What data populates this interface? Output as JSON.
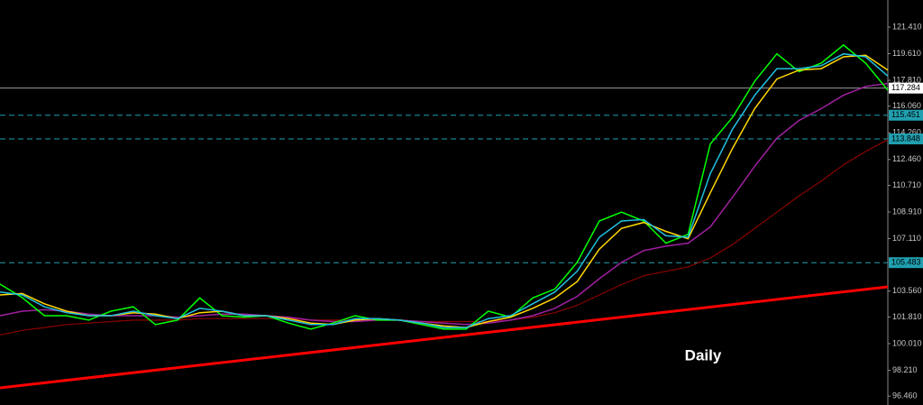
{
  "chart_data": {
    "type": "line",
    "background": "#000000",
    "x": [
      0,
      5,
      10,
      15,
      20,
      25,
      30,
      35,
      40,
      45,
      50,
      55,
      60,
      65,
      70,
      75,
      80,
      85,
      90,
      95,
      100,
      105,
      110,
      115,
      120,
      125,
      130,
      135,
      140,
      145,
      150,
      155,
      160,
      165,
      170,
      175,
      180,
      185,
      190,
      195,
      200
    ],
    "xlim": [
      0,
      200
    ],
    "ylim": [
      95.86,
      123.24
    ],
    "yticks": [
      {
        "value": 121.41,
        "label": "121.410"
      },
      {
        "value": 119.61,
        "label": "119.610"
      },
      {
        "value": 117.81,
        "label": "117.810"
      },
      {
        "value": 116.06,
        "label": "116.060"
      },
      {
        "value": 114.26,
        "label": "114.260"
      },
      {
        "value": 112.46,
        "label": "112.460"
      },
      {
        "value": 110.71,
        "label": "110.710"
      },
      {
        "value": 108.91,
        "label": "108.910"
      },
      {
        "value": 107.11,
        "label": "107.110"
      },
      {
        "value": 103.56,
        "label": "103.560"
      },
      {
        "value": 101.81,
        "label": "101.810"
      },
      {
        "value": 100.01,
        "label": "100.010"
      },
      {
        "value": 98.21,
        "label": "98.210"
      },
      {
        "value": 96.46,
        "label": "96.460"
      }
    ],
    "series": [
      {
        "color": "#8b0000",
        "width": 1.2,
        "values": [
          100.6,
          100.9,
          101.1,
          101.3,
          101.4,
          101.5,
          101.6,
          101.6,
          101.6,
          101.7,
          101.7,
          101.7,
          101.7,
          101.7,
          101.6,
          101.6,
          101.6,
          101.6,
          101.6,
          101.5,
          101.5,
          101.5,
          101.5,
          101.6,
          101.8,
          102.1,
          102.6,
          103.3,
          104.0,
          104.6,
          104.9,
          105.2,
          105.8,
          106.7,
          107.8,
          108.9,
          110.0,
          111.0,
          112.1,
          113.0,
          113.8
        ]
      },
      {
        "color": "#a020a0",
        "width": 1.5,
        "values": [
          101.9,
          102.2,
          102.3,
          102.2,
          102.0,
          101.9,
          101.9,
          101.9,
          101.8,
          101.9,
          102.0,
          102.0,
          101.9,
          101.8,
          101.6,
          101.5,
          101.5,
          101.6,
          101.6,
          101.5,
          101.4,
          101.3,
          101.4,
          101.6,
          101.9,
          102.4,
          103.2,
          104.4,
          105.5,
          106.3,
          106.6,
          106.8,
          107.9,
          109.9,
          112.0,
          113.9,
          115.1,
          115.9,
          116.8,
          117.4,
          117.6
        ]
      },
      {
        "color": "#00ff00",
        "width": 1.5,
        "values": [
          104.03,
          103.12,
          101.9,
          101.9,
          101.6,
          102.2,
          102.5,
          101.3,
          101.6,
          103.1,
          101.9,
          101.8,
          101.9,
          101.4,
          100.99,
          101.4,
          101.9,
          101.6,
          101.6,
          101.3,
          100.99,
          100.99,
          102.2,
          101.8,
          103.1,
          103.7,
          105.5,
          108.3,
          108.9,
          108.3,
          106.8,
          107.4,
          113.5,
          115.3,
          117.75,
          119.6,
          118.4,
          118.97,
          120.2,
          118.97,
          117.14
        ]
      },
      {
        "color": "#ffd700",
        "width": 1.5,
        "values": [
          103.3,
          103.4,
          102.7,
          102.2,
          101.9,
          101.9,
          102.1,
          102.0,
          101.7,
          102.1,
          102.2,
          101.9,
          101.9,
          101.7,
          101.4,
          101.3,
          101.6,
          101.7,
          101.6,
          101.4,
          101.2,
          101.1,
          101.5,
          101.8,
          102.4,
          103.1,
          104.2,
          106.4,
          107.8,
          108.2,
          107.6,
          107.1,
          110.2,
          113.2,
          115.9,
          117.9,
          118.5,
          118.6,
          119.4,
          119.5,
          118.5
        ]
      },
      {
        "color": "#20c0e0",
        "width": 1.5,
        "values": [
          103.5,
          103.3,
          102.5,
          102.1,
          101.9,
          101.9,
          102.2,
          101.9,
          101.7,
          102.4,
          102.2,
          101.9,
          101.9,
          101.6,
          101.3,
          101.3,
          101.7,
          101.7,
          101.6,
          101.4,
          101.1,
          101.1,
          101.7,
          101.9,
          102.7,
          103.5,
          104.9,
          107.2,
          108.3,
          108.4,
          107.3,
          107.2,
          111.5,
          114.5,
          116.8,
          118.6,
          118.6,
          118.8,
          119.6,
          119.4,
          118.1
        ]
      },
      {
        "color": "#ff0000",
        "width": 3,
        "x": [
          0,
          200
        ],
        "values": [
          97.02,
          103.85
        ]
      }
    ],
    "hlines": [
      {
        "value": 117.284,
        "color": "#9a9a9a",
        "label_bg": "#ffffff",
        "dashed": false
      },
      {
        "value": 115.451,
        "color": "#20a0b0",
        "label_bg": "#20a0b0",
        "dashed": true
      },
      {
        "value": 113.848,
        "color": "#20a0b0",
        "label_bg": "#20a0b0",
        "dashed": true
      },
      {
        "value": 105.483,
        "color": "#20a0b0",
        "label_bg": "#20a0b0",
        "dashed": true
      }
    ],
    "annotation": "Daily"
  }
}
